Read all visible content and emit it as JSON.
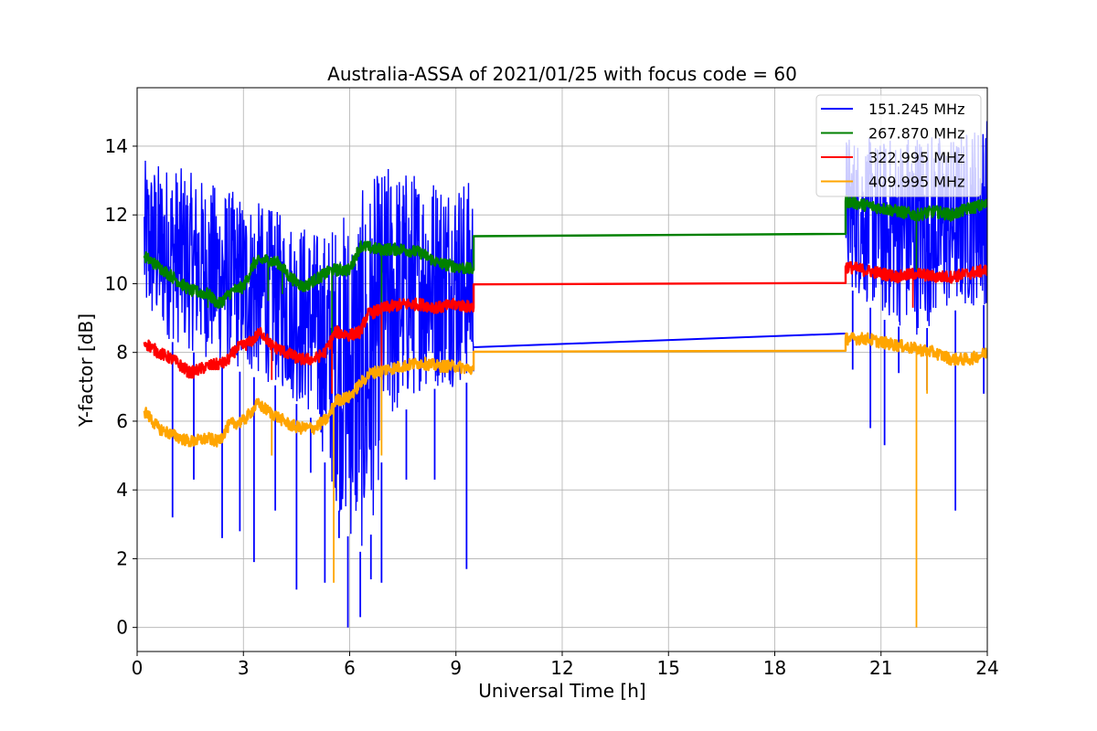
{
  "chart_data": {
    "type": "line",
    "title": "Australia-ASSA of 2021/01/25 with focus code = 60",
    "xlabel": "Universal Time [h]",
    "ylabel": "Y-factor [dB]",
    "xlim": [
      0,
      24
    ],
    "ylim": [
      -0.7,
      15.7
    ],
    "xticks": [
      0,
      3,
      6,
      9,
      12,
      15,
      18,
      21,
      24
    ],
    "yticks": [
      0,
      2,
      4,
      6,
      8,
      10,
      12,
      14
    ],
    "grid": true,
    "legend_position": "top-right",
    "series": [
      {
        "name": "151.245 MHz",
        "color": "#0000ff",
        "band_upper": [
          [
            0.2,
            13.6
          ],
          [
            1.0,
            13.5
          ],
          [
            2.0,
            13.0
          ],
          [
            3.0,
            12.6
          ],
          [
            4.0,
            12.1
          ],
          [
            4.7,
            11.8
          ],
          [
            5.2,
            11.5
          ],
          [
            6.0,
            12.3
          ],
          [
            7.0,
            13.5
          ],
          [
            8.0,
            13.3
          ],
          [
            9.0,
            13.2
          ],
          [
            9.5,
            13.0
          ]
        ],
        "band_lower": [
          [
            0.2,
            8.8
          ],
          [
            1.0,
            8.3
          ],
          [
            2.0,
            7.8
          ],
          [
            3.0,
            7.4
          ],
          [
            4.0,
            7.0
          ],
          [
            5.0,
            6.0
          ],
          [
            5.5,
            4.0
          ],
          [
            6.0,
            2.5
          ],
          [
            6.5,
            2.0
          ],
          [
            7.0,
            5.5
          ],
          [
            8.0,
            6.9
          ],
          [
            9.0,
            7.0
          ],
          [
            9.5,
            7.2
          ]
        ],
        "spikes": [
          [
            1.0,
            3.2
          ],
          [
            1.6,
            4.3
          ],
          [
            2.4,
            2.6
          ],
          [
            2.9,
            2.8
          ],
          [
            3.3,
            1.9
          ],
          [
            3.9,
            3.4
          ],
          [
            4.5,
            1.1
          ],
          [
            4.9,
            4.5
          ],
          [
            5.3,
            1.3
          ],
          [
            5.7,
            2.6
          ],
          [
            5.95,
            0.0
          ],
          [
            6.3,
            0.3
          ],
          [
            6.6,
            1.4
          ],
          [
            6.9,
            1.3
          ],
          [
            7.6,
            4.3
          ],
          [
            8.4,
            4.3
          ],
          [
            9.3,
            1.7
          ]
        ],
        "points": [
          [
            9.5,
            8.15
          ],
          [
            20.0,
            8.55
          ]
        ],
        "band_upper_2": [
          [
            20.0,
            14.4
          ],
          [
            21.0,
            14.2
          ],
          [
            22.0,
            14.6
          ],
          [
            23.0,
            14.3
          ],
          [
            24.0,
            14.9
          ]
        ],
        "band_lower_2": [
          [
            20.0,
            10.0
          ],
          [
            21.0,
            9.0
          ],
          [
            22.0,
            8.5
          ],
          [
            23.0,
            9.2
          ],
          [
            24.0,
            9.4
          ]
        ],
        "spikes_2": [
          [
            20.2,
            7.5
          ],
          [
            20.7,
            5.8
          ],
          [
            21.1,
            5.3
          ],
          [
            21.5,
            7.4
          ],
          [
            22.3,
            6.9
          ],
          [
            23.1,
            3.4
          ],
          [
            23.9,
            6.8
          ]
        ]
      },
      {
        "name": "267.870 MHz",
        "color": "#008000",
        "points": [
          [
            0.2,
            10.8
          ],
          [
            0.6,
            10.5
          ],
          [
            1.0,
            10.2
          ],
          [
            1.5,
            9.8
          ],
          [
            2.0,
            9.7
          ],
          [
            2.3,
            9.4
          ],
          [
            2.7,
            9.8
          ],
          [
            3.0,
            9.9
          ],
          [
            3.3,
            10.6
          ],
          [
            3.6,
            10.7
          ],
          [
            4.0,
            10.6
          ],
          [
            4.3,
            10.2
          ],
          [
            4.7,
            9.9
          ],
          [
            5.0,
            10.1
          ],
          [
            5.5,
            10.4
          ],
          [
            6.0,
            10.4
          ],
          [
            6.3,
            11.1
          ],
          [
            6.8,
            11.0
          ],
          [
            7.5,
            11.0
          ],
          [
            8.0,
            10.9
          ],
          [
            8.5,
            10.6
          ],
          [
            9.0,
            10.5
          ],
          [
            9.5,
            10.4
          ],
          [
            9.5,
            11.38
          ],
          [
            20.0,
            11.45
          ],
          [
            20.0,
            12.4
          ],
          [
            20.5,
            12.3
          ],
          [
            21.0,
            12.2
          ],
          [
            21.5,
            12.1
          ],
          [
            22.0,
            12.0
          ],
          [
            22.5,
            12.1
          ],
          [
            23.0,
            12.0
          ],
          [
            23.5,
            12.2
          ],
          [
            24.0,
            12.3
          ]
        ],
        "spikes": [
          [
            2.0,
            9.3
          ],
          [
            3.7,
            9.5
          ],
          [
            4.1,
            9.7
          ],
          [
            5.5,
            7.3
          ],
          [
            6.9,
            8.0
          ],
          [
            22.0,
            10.4
          ]
        ]
      },
      {
        "name": "322.995 MHz",
        "color": "#ff0000",
        "points": [
          [
            0.2,
            8.3
          ],
          [
            0.6,
            8.0
          ],
          [
            1.0,
            7.8
          ],
          [
            1.5,
            7.4
          ],
          [
            2.0,
            7.6
          ],
          [
            2.5,
            7.7
          ],
          [
            2.8,
            8.1
          ],
          [
            3.2,
            8.3
          ],
          [
            3.5,
            8.6
          ],
          [
            3.8,
            8.2
          ],
          [
            4.2,
            8.0
          ],
          [
            4.6,
            7.8
          ],
          [
            5.0,
            7.8
          ],
          [
            5.3,
            8.0
          ],
          [
            5.6,
            8.6
          ],
          [
            6.0,
            8.5
          ],
          [
            6.3,
            8.6
          ],
          [
            6.5,
            9.1
          ],
          [
            7.0,
            9.3
          ],
          [
            7.5,
            9.4
          ],
          [
            8.0,
            9.4
          ],
          [
            8.5,
            9.3
          ],
          [
            9.0,
            9.4
          ],
          [
            9.5,
            9.3
          ],
          [
            9.5,
            9.98
          ],
          [
            20.0,
            10.02
          ],
          [
            20.0,
            10.5
          ],
          [
            20.5,
            10.4
          ],
          [
            21.0,
            10.3
          ],
          [
            21.5,
            10.2
          ],
          [
            22.0,
            10.3
          ],
          [
            22.5,
            10.2
          ],
          [
            23.0,
            10.2
          ],
          [
            23.5,
            10.3
          ],
          [
            24.0,
            10.4
          ]
        ],
        "spikes": [
          [
            5.5,
            6.8
          ],
          [
            6.9,
            7.2
          ],
          [
            3.8,
            7.2
          ],
          [
            21.9,
            9.3
          ]
        ]
      },
      {
        "name": "409.995 MHz",
        "color": "#ffa500",
        "points": [
          [
            0.2,
            6.3
          ],
          [
            0.6,
            5.8
          ],
          [
            1.0,
            5.6
          ],
          [
            1.5,
            5.4
          ],
          [
            2.0,
            5.5
          ],
          [
            2.3,
            5.4
          ],
          [
            2.6,
            5.9
          ],
          [
            3.0,
            6.0
          ],
          [
            3.4,
            6.5
          ],
          [
            3.7,
            6.3
          ],
          [
            4.0,
            6.1
          ],
          [
            4.3,
            5.9
          ],
          [
            4.6,
            5.8
          ],
          [
            5.0,
            5.8
          ],
          [
            5.4,
            6.1
          ],
          [
            5.6,
            6.6
          ],
          [
            6.0,
            6.7
          ],
          [
            6.3,
            7.1
          ],
          [
            6.6,
            7.4
          ],
          [
            7.0,
            7.5
          ],
          [
            7.5,
            7.6
          ],
          [
            8.0,
            7.7
          ],
          [
            8.5,
            7.6
          ],
          [
            9.0,
            7.6
          ],
          [
            9.5,
            7.5
          ],
          [
            9.5,
            8.02
          ],
          [
            20.0,
            8.05
          ],
          [
            20.0,
            8.4
          ],
          [
            20.6,
            8.4
          ],
          [
            21.0,
            8.3
          ],
          [
            21.5,
            8.2
          ],
          [
            22.0,
            8.1
          ],
          [
            22.5,
            8.0
          ],
          [
            23.0,
            7.8
          ],
          [
            23.5,
            7.8
          ],
          [
            24.0,
            8.0
          ]
        ],
        "spikes": [
          [
            3.8,
            5.0
          ],
          [
            5.55,
            1.3
          ],
          [
            6.9,
            5.0
          ],
          [
            22.0,
            0.0
          ],
          [
            22.3,
            6.8
          ]
        ]
      }
    ]
  }
}
